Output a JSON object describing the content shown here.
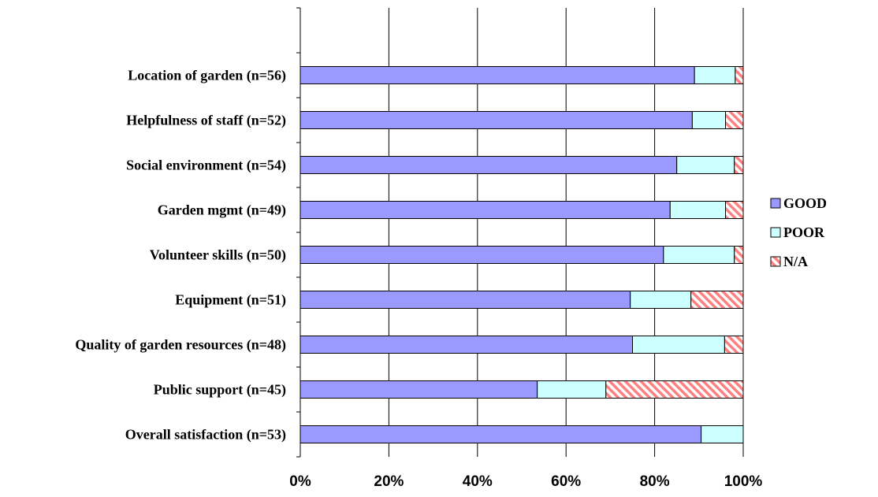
{
  "chart_data": {
    "type": "bar",
    "orientation": "horizontal",
    "stacked": "percent",
    "title": "",
    "xlabel": "",
    "ylabel": "",
    "xlim": [
      0,
      100
    ],
    "x_ticks": [
      "0%",
      "20%",
      "40%",
      "60%",
      "80%",
      "100%"
    ],
    "x_tick_values": [
      0,
      20,
      40,
      60,
      80,
      100
    ],
    "grid": "vertical",
    "legend_position": "right",
    "categories": [
      "Location of garden (n=56)",
      "Helpfulness of staff (n=52)",
      "Social environment (n=54)",
      "Garden mgmt (n=49)",
      "Volunteer skills (n=50)",
      "Equipment (n=51)",
      "Quality of garden resources (n=48)",
      "Public support (n=45)",
      "Overall satisfaction (n=53)"
    ],
    "series": [
      {
        "name": "GOOD",
        "color": "#9999ff",
        "pattern": "solid",
        "values": [
          89,
          88.5,
          85,
          83.5,
          82,
          74.5,
          75,
          53.5,
          90.5
        ]
      },
      {
        "name": "POOR",
        "color": "#ccffff",
        "pattern": "solid",
        "values": [
          9.2,
          7.5,
          13,
          12.5,
          16,
          13.7,
          20.8,
          15.5,
          9.5
        ]
      },
      {
        "name": "N/A",
        "color": "#ff8080",
        "pattern": "diagonal-hatch",
        "values": [
          1.8,
          4,
          2,
          4,
          2,
          11.8,
          4.2,
          31,
          0
        ]
      }
    ]
  }
}
